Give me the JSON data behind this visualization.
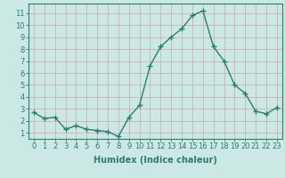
{
  "x": [
    0,
    1,
    2,
    3,
    4,
    5,
    6,
    7,
    8,
    9,
    10,
    11,
    12,
    13,
    14,
    15,
    16,
    17,
    18,
    19,
    20,
    21,
    22,
    23
  ],
  "y": [
    2.7,
    2.2,
    2.3,
    1.3,
    1.6,
    1.3,
    1.2,
    1.1,
    0.7,
    2.3,
    3.3,
    6.6,
    8.2,
    9.0,
    9.7,
    10.8,
    11.2,
    8.2,
    7.0,
    5.0,
    4.3,
    2.8,
    2.6,
    3.1
  ],
  "line_color": "#2e7d6e",
  "marker": "+",
  "marker_size": 4,
  "line_width": 1.0,
  "bg_color": "#cce8e4",
  "grid_color": "#c8a8a8",
  "xlabel": "Humidex (Indice chaleur)",
  "xlabel_fontsize": 7,
  "tick_fontsize": 6,
  "xlim": [
    -0.5,
    23.5
  ],
  "ylim": [
    0.5,
    11.8
  ],
  "yticks": [
    1,
    2,
    3,
    4,
    5,
    6,
    7,
    8,
    9,
    10,
    11
  ],
  "xticks": [
    0,
    1,
    2,
    3,
    4,
    5,
    6,
    7,
    8,
    9,
    10,
    11,
    12,
    13,
    14,
    15,
    16,
    17,
    18,
    19,
    20,
    21,
    22,
    23
  ]
}
